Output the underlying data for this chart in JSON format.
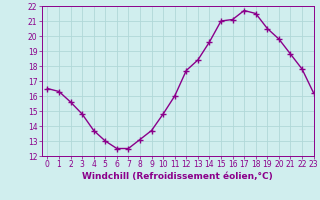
{
  "x": [
    0,
    1,
    2,
    3,
    4,
    5,
    6,
    7,
    8,
    9,
    10,
    11,
    12,
    13,
    14,
    15,
    16,
    17,
    18,
    19,
    20,
    21,
    22,
    23
  ],
  "y": [
    16.5,
    16.3,
    15.6,
    14.8,
    13.7,
    13.0,
    12.5,
    12.5,
    13.1,
    13.7,
    14.8,
    16.0,
    17.7,
    18.4,
    19.6,
    21.0,
    21.1,
    21.7,
    21.5,
    20.5,
    19.8,
    18.8,
    17.8,
    16.2
  ],
  "line_color": "#8b008b",
  "marker": "+",
  "marker_size": 4,
  "background_color": "#d0eeee",
  "grid_color": "#b0d8d8",
  "xlabel": "Windchill (Refroidissement éolien,°C)",
  "ylim": [
    12,
    22
  ],
  "xlim": [
    -0.5,
    23
  ],
  "yticks": [
    12,
    13,
    14,
    15,
    16,
    17,
    18,
    19,
    20,
    21,
    22
  ],
  "xticks": [
    0,
    1,
    2,
    3,
    4,
    5,
    6,
    7,
    8,
    9,
    10,
    11,
    12,
    13,
    14,
    15,
    16,
    17,
    18,
    19,
    20,
    21,
    22,
    23
  ],
  "tick_label_fontsize": 5.5,
  "xlabel_fontsize": 6.5,
  "line_width": 1.0
}
